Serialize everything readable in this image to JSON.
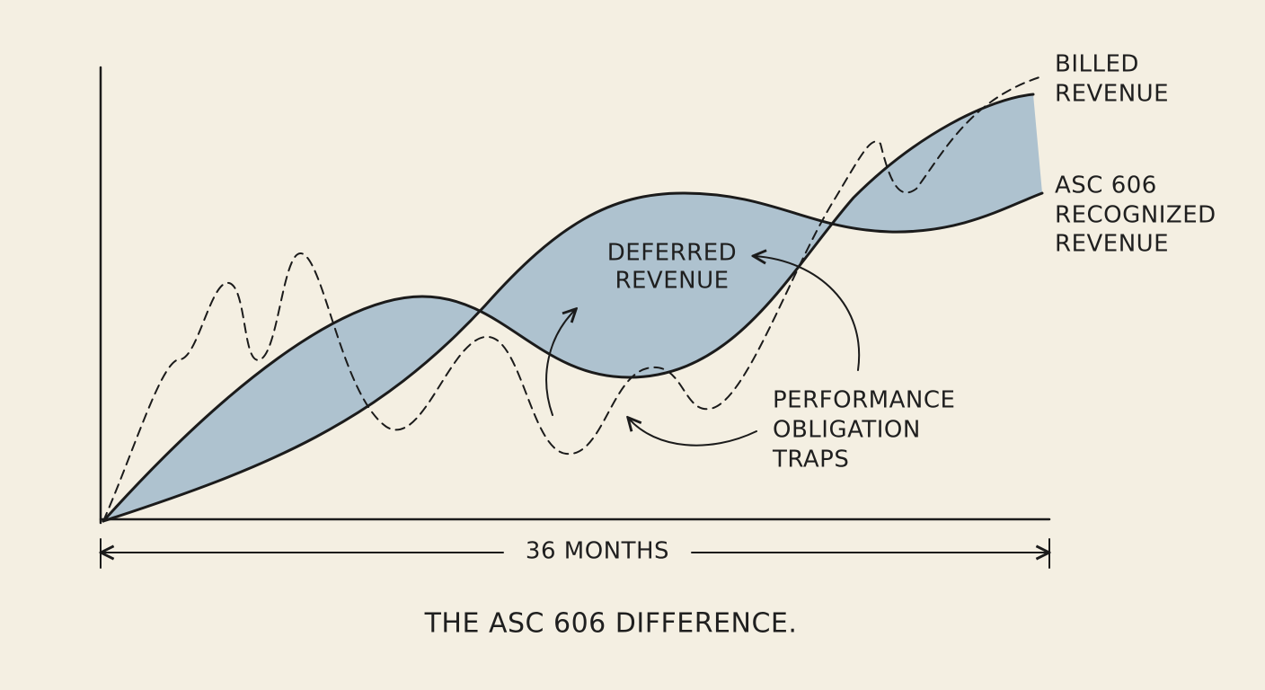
{
  "labels": {
    "billed": [
      "BILLED",
      "REVENUE"
    ],
    "recognized": [
      "ASC 606",
      "RECOGNIZED",
      "REVENUE"
    ],
    "deferred": [
      "DEFERRED",
      "REVENUE"
    ],
    "traps": [
      "PERFORMANCE",
      "OBLIGATION",
      "TRAPS"
    ],
    "duration": "36 MONTHS"
  },
  "title": "THE ASC 606 DIFFERENCE."
}
